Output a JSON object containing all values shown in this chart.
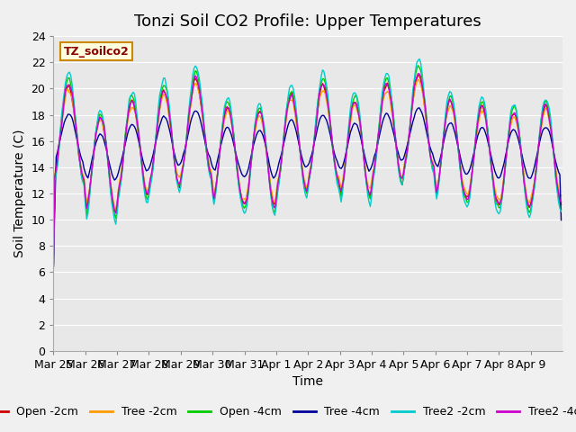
{
  "title": "Tonzi Soil CO2 Profile: Upper Temperatures",
  "xlabel": "Time",
  "ylabel": "Soil Temperature (C)",
  "ylim": [
    0,
    24
  ],
  "yticks": [
    0,
    2,
    4,
    6,
    8,
    10,
    12,
    14,
    16,
    18,
    20,
    22,
    24
  ],
  "xtick_labels": [
    "Mar 25",
    "Mar 26",
    "Mar 27",
    "Mar 28",
    "Mar 29",
    "Mar 30",
    "Mar 31",
    "Apr 1",
    "Apr 2",
    "Apr 3",
    "Apr 4",
    "Apr 5",
    "Apr 6",
    "Apr 7",
    "Apr 8",
    "Apr 9"
  ],
  "series_colors": {
    "Open -2cm": "#cc0000",
    "Tree -2cm": "#ff9900",
    "Open -4cm": "#00cc00",
    "Tree -4cm": "#000099",
    "Tree2 -2cm": "#00cccc",
    "Tree2 -4cm": "#cc00cc"
  },
  "legend_label": "TZ_soilco2",
  "background_color": "#e8e8e8",
  "grid_color": "#ffffff",
  "title_fontsize": 13,
  "axis_fontsize": 10,
  "tick_fontsize": 9,
  "legend_fontsize": 9,
  "day_variations": [
    2.0,
    -1.0,
    0.5,
    1.5,
    2.5,
    0.0,
    -0.5,
    1.0,
    2.0,
    0.5,
    2.0,
    3.0,
    0.5,
    0.0,
    -0.5,
    0.0
  ]
}
